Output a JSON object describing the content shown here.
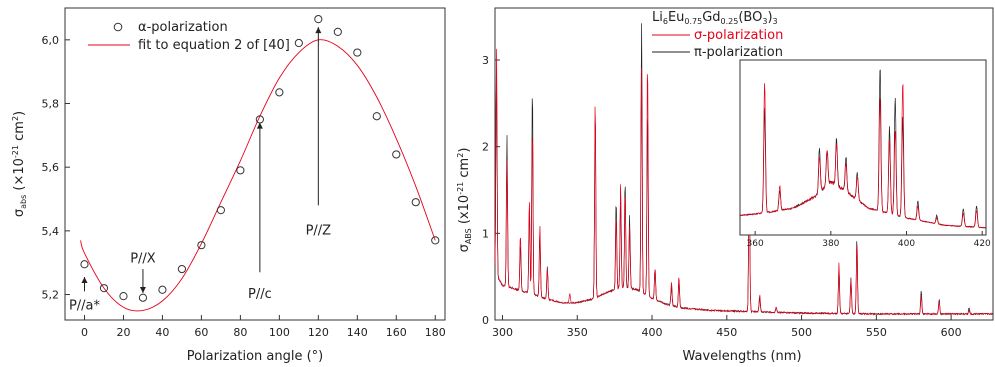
{
  "chart_data": [
    {
      "type": "scatter",
      "xlabel": "Polarization angle (°)",
      "ylabel": {
        "base": "σ",
        "sub": "abs",
        "pre": " (×10",
        "sup1": "-21",
        "mid": " cm",
        "sup2": "2",
        "post": ")"
      },
      "xlim": [
        -10,
        185
      ],
      "ylim": [
        5.12,
        6.1
      ],
      "xticks": [
        0,
        20,
        40,
        60,
        80,
        100,
        120,
        140,
        160,
        180
      ],
      "yticks": [
        5.2,
        5.4,
        5.6,
        5.8,
        6.0
      ],
      "ytick_labels": [
        "5,2",
        "5,4",
        "5,6",
        "5,8",
        "6,0"
      ],
      "grid": false,
      "legend_position": "top-left",
      "series": [
        {
          "name": "α-polarization",
          "marker": "open-circle",
          "x": [
            0,
            10,
            20,
            30,
            40,
            50,
            60,
            70,
            80,
            90,
            100,
            110,
            120,
            130,
            140,
            150,
            160,
            170,
            180
          ],
          "y": [
            5.295,
            5.22,
            5.195,
            5.19,
            5.215,
            5.28,
            5.355,
            5.465,
            5.59,
            5.75,
            5.835,
            5.99,
            6.065,
            6.025,
            5.96,
            5.76,
            5.64,
            5.49,
            5.37
          ]
        },
        {
          "name": "fit to equation 2 of [40]",
          "type": "line",
          "color": "#e8001c",
          "x": [
            -2,
            0,
            10,
            20,
            30,
            40,
            50,
            60,
            70,
            80,
            90,
            100,
            110,
            120,
            130,
            140,
            150,
            160,
            170,
            180
          ],
          "y": [
            5.37,
            5.33,
            5.22,
            5.16,
            5.15,
            5.18,
            5.25,
            5.36,
            5.49,
            5.62,
            5.76,
            5.88,
            5.96,
            6.0,
            5.98,
            5.92,
            5.82,
            5.69,
            5.54,
            5.37
          ]
        }
      ],
      "annotations": [
        {
          "text": "P//a*",
          "x": 0,
          "y": 5.26
        },
        {
          "text": "P//X",
          "x": 30,
          "y": 5.26
        },
        {
          "text": "P//c",
          "x": 90,
          "y": 5.35
        },
        {
          "text": "P//Z",
          "x": 120,
          "y": 5.55
        }
      ]
    },
    {
      "type": "line",
      "title": {
        "t1": "Li",
        "s1": "6",
        "t2": "Eu",
        "s2": "0.75",
        "t3": "Gd",
        "s3": "0.25",
        "t4": "(BO",
        "s4": "3",
        "t5": ")",
        "s5": "3"
      },
      "xlabel": "Wavelengths (nm)",
      "ylabel": {
        "base": "σ",
        "sub": "ABS",
        "pre": " (x10",
        "sup1": "-21",
        "mid": " cm",
        "sup2": "2",
        "post": ")"
      },
      "xlim": [
        295,
        628
      ],
      "ylim": [
        0,
        3.6
      ],
      "xticks": [
        300,
        350,
        400,
        450,
        500,
        550,
        600
      ],
      "yticks": [
        0,
        1,
        2,
        3
      ],
      "grid": false,
      "legend_position": "top-center",
      "series": [
        {
          "name": "σ-polarization",
          "color": "#e8001c"
        },
        {
          "name": "π-polarization",
          "color": "#222222"
        }
      ],
      "baseline": [
        [
          295,
          0.55
        ],
        [
          300,
          0.4
        ],
        [
          310,
          0.35
        ],
        [
          320,
          0.3
        ],
        [
          330,
          0.24
        ],
        [
          340,
          0.2
        ],
        [
          350,
          0.2
        ],
        [
          360,
          0.24
        ],
        [
          370,
          0.32
        ],
        [
          380,
          0.38
        ],
        [
          390,
          0.35
        ],
        [
          400,
          0.25
        ],
        [
          410,
          0.18
        ],
        [
          420,
          0.14
        ],
        [
          440,
          0.11
        ],
        [
          460,
          0.1
        ],
        [
          500,
          0.08
        ],
        [
          550,
          0.07
        ],
        [
          628,
          0.07
        ]
      ],
      "peaks": [
        {
          "x": 296,
          "sigma": 3.2,
          "pi": 2.9
        },
        {
          "x": 303,
          "sigma": 1.8,
          "pi": 2.15
        },
        {
          "x": 312,
          "sigma": 1.0,
          "pi": 0.9
        },
        {
          "x": 318,
          "sigma": 1.4,
          "pi": 1.3
        },
        {
          "x": 320,
          "sigma": 2.3,
          "pi": 2.7
        },
        {
          "x": 325,
          "sigma": 1.1,
          "pi": 1.0
        },
        {
          "x": 330,
          "sigma": 0.6,
          "pi": 0.6
        },
        {
          "x": 345,
          "sigma": 0.3,
          "pi": 0.2
        },
        {
          "x": 362,
          "sigma": 2.6,
          "pi": 2.5
        },
        {
          "x": 376,
          "sigma": 1.2,
          "pi": 1.4
        },
        {
          "x": 379,
          "sigma": 1.6,
          "pi": 1.5
        },
        {
          "x": 382,
          "sigma": 1.5,
          "pi": 1.6
        },
        {
          "x": 385,
          "sigma": 1.1,
          "pi": 1.2
        },
        {
          "x": 393,
          "sigma": 2.9,
          "pi": 3.5
        },
        {
          "x": 397,
          "sigma": 3.1,
          "pi": 2.5
        },
        {
          "x": 402,
          "sigma": 0.6,
          "pi": 0.6
        },
        {
          "x": 413,
          "sigma": 0.45,
          "pi": 0.4
        },
        {
          "x": 418,
          "sigma": 0.5,
          "pi": 0.45
        },
        {
          "x": 465,
          "sigma": 1.6,
          "pi": 1.75
        },
        {
          "x": 472,
          "sigma": 0.3,
          "pi": 0.25
        },
        {
          "x": 483,
          "sigma": 0.15,
          "pi": 0.15
        },
        {
          "x": 525,
          "sigma": 0.65,
          "pi": 0.6
        },
        {
          "x": 533,
          "sigma": 0.45,
          "pi": 0.5
        },
        {
          "x": 537,
          "sigma": 0.9,
          "pi": 0.95
        },
        {
          "x": 580,
          "sigma": 0.28,
          "pi": 0.35
        },
        {
          "x": 592,
          "sigma": 0.22,
          "pi": 0.25
        },
        {
          "x": 612,
          "sigma": 0.12,
          "pi": 0.14
        }
      ],
      "inset": {
        "xlim": [
          356,
          421
        ],
        "ylim": [
          0,
          3.6
        ],
        "xticks": [
          360,
          380,
          400,
          420
        ],
        "baseline": [
          [
            356,
            0.4
          ],
          [
            362,
            0.45
          ],
          [
            370,
            0.55
          ],
          [
            376,
            0.8
          ],
          [
            380,
            1.1
          ],
          [
            384,
            0.9
          ],
          [
            390,
            0.55
          ],
          [
            400,
            0.35
          ],
          [
            410,
            0.2
          ],
          [
            421,
            0.15
          ]
        ],
        "peaks": [
          {
            "x": 362.5,
            "sigma": 3.1,
            "pi": 2.6
          },
          {
            "x": 366.5,
            "sigma": 1.0,
            "pi": 0.9
          },
          {
            "x": 377,
            "sigma": 1.6,
            "pi": 1.8
          },
          {
            "x": 379,
            "sigma": 1.8,
            "pi": 1.7
          },
          {
            "x": 381.5,
            "sigma": 1.9,
            "pi": 2.0
          },
          {
            "x": 384,
            "sigma": 1.5,
            "pi": 1.6
          },
          {
            "x": 387,
            "sigma": 1.2,
            "pi": 1.3
          },
          {
            "x": 393,
            "sigma": 2.8,
            "pi": 3.5
          },
          {
            "x": 395.5,
            "sigma": 2.0,
            "pi": 2.2
          },
          {
            "x": 397,
            "sigma": 2.2,
            "pi": 2.8
          },
          {
            "x": 399,
            "sigma": 3.2,
            "pi": 2.4
          },
          {
            "x": 403,
            "sigma": 0.6,
            "pi": 0.7
          },
          {
            "x": 408,
            "sigma": 0.35,
            "pi": 0.4
          },
          {
            "x": 415,
            "sigma": 0.45,
            "pi": 0.55
          },
          {
            "x": 418.5,
            "sigma": 0.5,
            "pi": 0.6
          }
        ]
      }
    }
  ]
}
